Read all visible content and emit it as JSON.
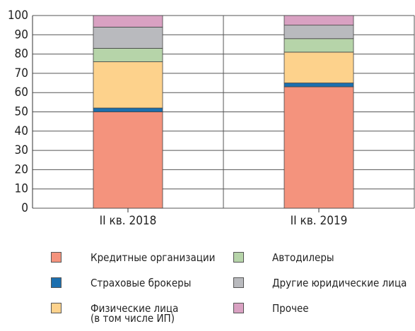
{
  "chart_data": {
    "type": "stacked_bar",
    "categories": [
      "II кв. 2018",
      "II кв. 2019"
    ],
    "series": [
      {
        "name": "Кредитные организации",
        "color": "#f4937d",
        "values": [
          50,
          63
        ]
      },
      {
        "name": "Страховые брокеры",
        "color": "#1c6fae",
        "values": [
          2,
          2
        ]
      },
      {
        "name": "Физические лица\n(в том числе ИП)",
        "color": "#fdd28c",
        "values": [
          24,
          16
        ]
      },
      {
        "name": "Автодилеры",
        "color": "#b6d4a9",
        "values": [
          7,
          7
        ]
      },
      {
        "name": "Другие юридические лица",
        "color": "#b9babe",
        "values": [
          11,
          7
        ]
      },
      {
        "name": "Прочее",
        "color": "#d9a1c2",
        "values": [
          6,
          5
        ]
      }
    ],
    "ylim": [
      0,
      100
    ],
    "yticks": [
      0,
      10,
      20,
      30,
      40,
      50,
      60,
      70,
      80,
      90,
      100
    ],
    "grid": true
  }
}
